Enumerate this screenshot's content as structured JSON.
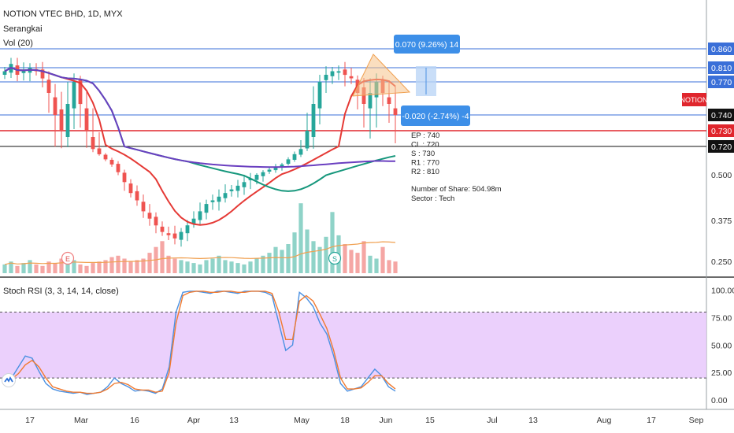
{
  "header": {
    "symbol_title": "NOTION VTEC BHD, 1D, MYX",
    "series_name": "Serangkai",
    "volume_label": "Vol (20)"
  },
  "indicator": {
    "title": "Stoch RSI (3, 3, 14, 14, close)"
  },
  "colors": {
    "up": "#26a69a",
    "down": "#ef5350",
    "ma_fast": "#e53935",
    "ma_mid": "#16977c",
    "ma_slow": "#6a3fc0",
    "k_line": "#4a90e2",
    "d_line": "#f07a30",
    "rsi_band": "#e7c8fb",
    "level_line": "#3a6fd8",
    "notion_tag": "#e0262d"
  },
  "annotations": {
    "upper_box": "0.070 (9.26%) 14",
    "lower_box": "-0.020 (-2.74%) -4",
    "notion_tag": "NOTION",
    "notes": [
      "EP : 740",
      "CL : 720",
      "S : 730",
      "R1 : 770",
      "R2 : 810"
    ],
    "share_info": [
      "Number of Share: 504.98m",
      "Sector : Tech"
    ],
    "event_e": "E",
    "event_s": "S"
  },
  "chart_data": [
    {
      "type": "candlestick",
      "title": "NOTION VTEC BHD, 1D, MYX",
      "y_axis_ticks": [
        "0.860",
        "0.810",
        "0.770",
        "0.740",
        "0.730",
        "0.720",
        "0.500",
        "0.375",
        "0.250"
      ],
      "highlighted_ticks": {
        "0.740": "#111111",
        "0.730": "#e0262d",
        "0.720": "#111111"
      },
      "x_axis_ticks": [
        "17",
        "Mar",
        "16",
        "Apr",
        "13",
        "May",
        "18",
        "Jun",
        "15",
        "Jul",
        "13",
        "Aug",
        "17",
        "Sep"
      ],
      "horizontal_levels": [
        0.86,
        0.81,
        0.77,
        0.74,
        0.73,
        0.72
      ],
      "close_approx": [
        0.8,
        0.82,
        0.79,
        0.8,
        0.81,
        0.8,
        0.78,
        0.76,
        0.74,
        0.73,
        0.75,
        0.77,
        0.75,
        0.73,
        0.7,
        0.66,
        0.62,
        0.58,
        0.52,
        0.48,
        0.45,
        0.43,
        0.4,
        0.38,
        0.36,
        0.34,
        0.33,
        0.32,
        0.34,
        0.36,
        0.38,
        0.4,
        0.42,
        0.43,
        0.44,
        0.45,
        0.46,
        0.47,
        0.48,
        0.49,
        0.5,
        0.52,
        0.54,
        0.56,
        0.58,
        0.62,
        0.66,
        0.7,
        0.73,
        0.75,
        0.77,
        0.79,
        0.8,
        0.8,
        0.79,
        0.78,
        0.76,
        0.75,
        0.76,
        0.77,
        0.76,
        0.75,
        0.74
      ],
      "volume_approx": [
        6,
        8,
        5,
        7,
        9,
        6,
        5,
        8,
        7,
        10,
        12,
        9,
        6,
        5,
        7,
        8,
        9,
        11,
        12,
        10,
        8,
        9,
        10,
        14,
        18,
        22,
        12,
        10,
        9,
        8,
        7,
        6,
        9,
        10,
        12,
        9,
        8,
        7,
        6,
        8,
        10,
        12,
        14,
        18,
        16,
        20,
        28,
        48,
        30,
        22,
        18,
        25,
        42,
        26,
        20,
        16,
        14,
        22,
        12,
        10,
        18,
        9,
        8
      ],
      "moving_averages": [
        {
          "name": "MA fast",
          "color": "#e53935"
        },
        {
          "name": "MA mid",
          "color": "#16977c"
        },
        {
          "name": "MA slow",
          "color": "#6a3fc0"
        }
      ]
    },
    {
      "type": "line",
      "title": "Stoch RSI (3, 3, 14, 14, close)",
      "y_axis_ticks": [
        "100.00",
        "75.00",
        "50.00",
        "25.00",
        "0.00"
      ],
      "ylim": [
        0,
        100
      ],
      "levels": [
        80,
        20
      ],
      "series": [
        {
          "name": "K",
          "values": [
            15,
            20,
            30,
            40,
            38,
            26,
            15,
            10,
            8,
            7,
            6,
            7,
            5,
            6,
            7,
            12,
            20,
            15,
            12,
            8,
            9,
            8,
            6,
            10,
            30,
            80,
            98,
            99,
            99,
            98,
            97,
            99,
            99,
            98,
            97,
            99,
            99,
            99,
            98,
            95,
            70,
            45,
            50,
            98,
            93,
            85,
            70,
            60,
            40,
            15,
            8,
            10,
            12,
            20,
            28,
            22,
            12,
            8
          ]
        },
        {
          "name": "D",
          "values": [
            18,
            19,
            24,
            32,
            36,
            30,
            20,
            12,
            10,
            8,
            7,
            7,
            6,
            6,
            7,
            10,
            15,
            16,
            14,
            10,
            9,
            9,
            7,
            8,
            25,
            70,
            95,
            98,
            99,
            99,
            98,
            98,
            99,
            99,
            98,
            98,
            99,
            99,
            99,
            97,
            80,
            55,
            55,
            90,
            95,
            90,
            78,
            65,
            45,
            20,
            10,
            10,
            11,
            16,
            22,
            22,
            15,
            10
          ]
        }
      ]
    }
  ]
}
